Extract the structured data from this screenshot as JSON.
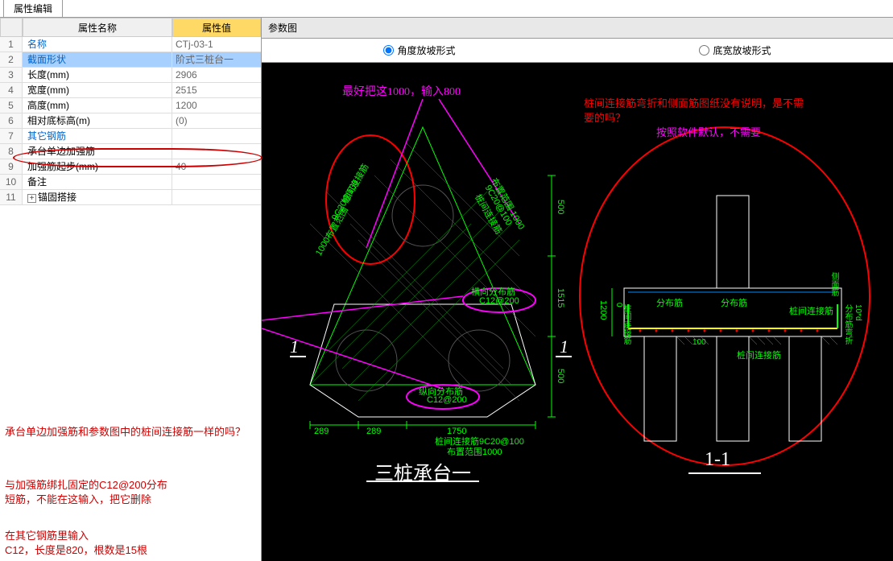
{
  "tab": {
    "label": "属性编辑"
  },
  "propTable": {
    "headerName": "属性名称",
    "headerValue": "属性值",
    "rows": [
      {
        "n": "1",
        "name": "名称",
        "value": "CTj-03-1",
        "blue": true
      },
      {
        "n": "2",
        "name": "截面形状",
        "value": "阶式三桩台一",
        "blue": true,
        "selected": true
      },
      {
        "n": "3",
        "name": "长度(mm)",
        "value": "2906"
      },
      {
        "n": "4",
        "name": "宽度(mm)",
        "value": "2515"
      },
      {
        "n": "5",
        "name": "高度(mm)",
        "value": "1200"
      },
      {
        "n": "6",
        "name": "相对底标高(m)",
        "value": "(0)"
      },
      {
        "n": "7",
        "name": "其它钢筋",
        "value": "",
        "blue": true
      },
      {
        "n": "8",
        "name": "承台单边加强筋",
        "value": ""
      },
      {
        "n": "9",
        "name": "加强筋起步(mm)",
        "value": "40"
      },
      {
        "n": "10",
        "name": "备注",
        "value": ""
      },
      {
        "n": "11",
        "name": "锚固搭接",
        "value": "",
        "expand": true
      }
    ]
  },
  "annotations": {
    "left1": "承台单边加强筋和参数图中的桩间连接筋一样的吗？",
    "left2a": "与加强筋绑扎固定的C12@200分布",
    "left2b": "短筋，不能在这输入，把它删除",
    "left3a": "在其它钢筋里输入",
    "left3b": "C12，长度是820，根数是15根",
    "top_magenta": "最好把这1000，输入800",
    "right_red1": "桩间连接筋弯折和侧面筋图纸没有说明，是不需",
    "right_red2": "要的吗？",
    "right_magenta": "按照软件默认，不需要"
  },
  "canvas": {
    "titleTab": "参数图",
    "radio1": "角度放坡形式",
    "radio2": "底宽放坡形式",
    "title_main": "三桩承台一",
    "title_section": "1-1",
    "section_mark_left": "1",
    "section_mark_right": "1",
    "label_zhuangjian": "桩间连接筋",
    "label_9c20": "9C20@100",
    "label_buzhifanwei": "布置范围",
    "label_1000": "1000",
    "label_hengxiang": "横向分布筋",
    "label_c12200": "C12@200",
    "label_zongxiang": "纵向分布筋",
    "label_zhuangjian2": "桩间连接筋9C20@100",
    "label_buzhifanwei2": "布置范围1000",
    "label_fenbu": "分布筋",
    "label_zhuangjian_sec": "桩间连接筋",
    "label_fenbu_wanzhe": "分布筋弯折",
    "label_zhuangjian_wanzhe": "桩间连接筋",
    "label_cemian": "侧面筋",
    "dim_289a": "289",
    "dim_289b": "289",
    "dim_1750": "1750",
    "dim_500a": "500",
    "dim_500b": "500",
    "dim_1515": "1515",
    "dim_1200": "1200",
    "dim_100": "100",
    "dim_0": "0",
    "dim_10d": "10*d"
  },
  "colors": {
    "green": "#00ff00",
    "magenta": "#ff00ff",
    "red": "#ff0000",
    "white": "#ffffff",
    "yellow": "#ffff00",
    "blue": "#0088ff"
  }
}
